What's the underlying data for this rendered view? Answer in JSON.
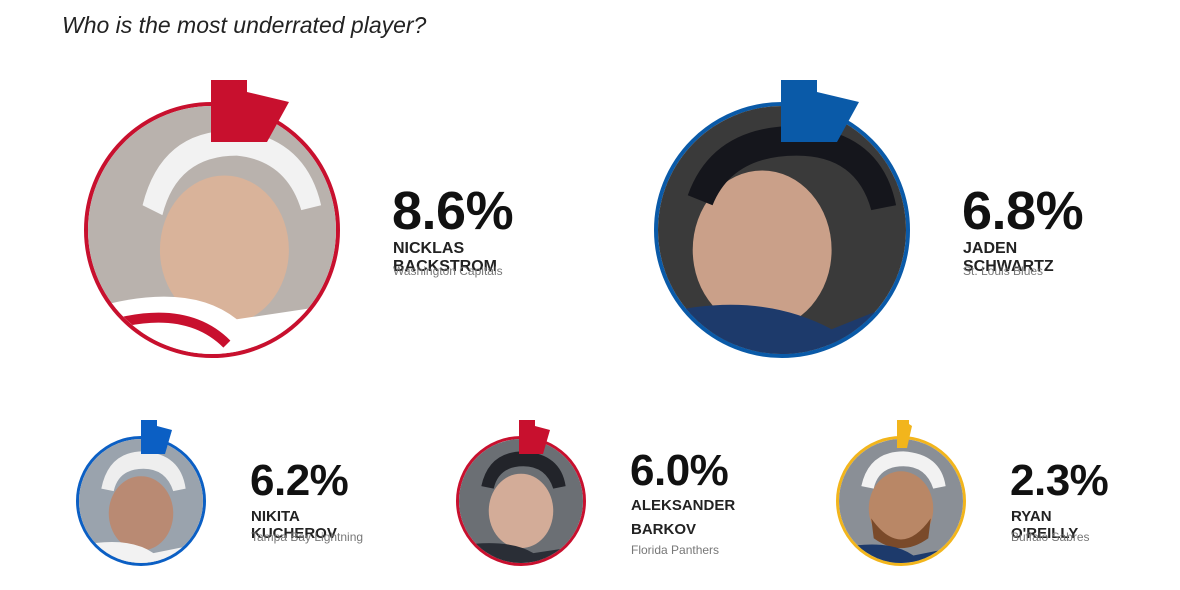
{
  "question": "Who is the most underrated player?",
  "chart_data": {
    "type": "bar",
    "title": "Who is the most underrated player?",
    "unit": "%",
    "categories": [
      "NICKLAS BACKSTROM",
      "JADEN SCHWARTZ",
      "NIKITA KUCHEROV",
      "ALEKSANDER BARKOV",
      "RYAN O'REILLY"
    ],
    "values": [
      8.6,
      6.8,
      6.2,
      6.0,
      2.3
    ],
    "teams": [
      "Washington Capitals",
      "St. Louis Blues",
      "Tampa Bay Lightning",
      "Florida Panthers",
      "Buffalo Sabres"
    ]
  },
  "players": [
    {
      "pct": "8.6%",
      "name": "NICKLAS BACKSTROM",
      "team": "Washington Capitals",
      "color": "#c8102e"
    },
    {
      "pct": "6.8%",
      "name": "JADEN SCHWARTZ",
      "team": "St. Louis Blues",
      "color": "#0a5aa8"
    },
    {
      "pct": "6.2%",
      "name": "NIKITA KUCHEROV",
      "team": "Tampa Bay Lightning",
      "color": "#0b5fc4"
    },
    {
      "pct": "6.0%",
      "name": "ALEKSANDER BARKOV",
      "team": "Florida Panthers",
      "color": "#c8102e"
    },
    {
      "pct": "2.3%",
      "name": "RYAN O'REILLY",
      "team": "Buffalo Sabres",
      "color": "#f2b51c"
    }
  ]
}
